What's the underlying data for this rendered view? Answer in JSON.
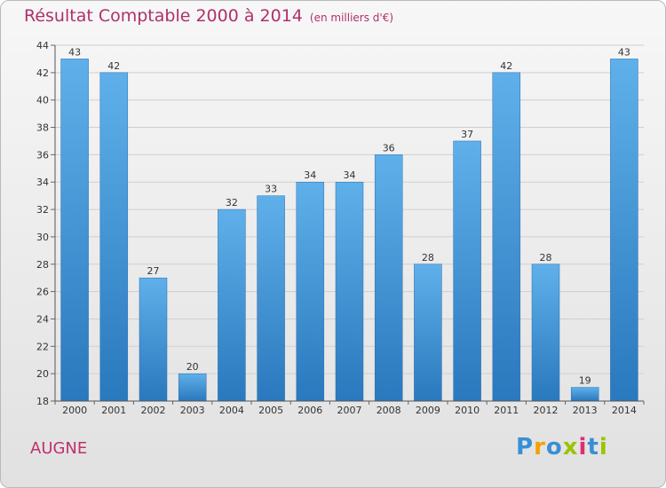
{
  "chart_data": {
    "type": "bar",
    "title": "Résultat Comptable 2000 à 2014",
    "unit_label": "(en milliers d'€)",
    "categories": [
      "2000",
      "2001",
      "2002",
      "2003",
      "2004",
      "2005",
      "2006",
      "2007",
      "2008",
      "2009",
      "2010",
      "2011",
      "2012",
      "2013",
      "2014"
    ],
    "values": [
      43,
      42,
      27,
      20,
      32,
      33,
      34,
      34,
      36,
      28,
      37,
      42,
      28,
      19,
      43
    ],
    "ylim": [
      18,
      44
    ],
    "yticks": [
      18,
      20,
      22,
      24,
      26,
      28,
      30,
      32,
      34,
      36,
      38,
      40,
      42,
      44
    ],
    "xlabel": "",
    "ylabel": "",
    "grid": true,
    "bar_color": "#3a8fd4"
  },
  "footer": {
    "town": "AUGNE",
    "logo_letters": [
      "P",
      "r",
      "o",
      "x",
      "i",
      "t",
      "i"
    ],
    "logo_colors": [
      "#3a8fd4",
      "#f2a000",
      "#3a8fd4",
      "#9bc400",
      "#e02d6e",
      "#3a8fd4",
      "#9bc400"
    ]
  }
}
